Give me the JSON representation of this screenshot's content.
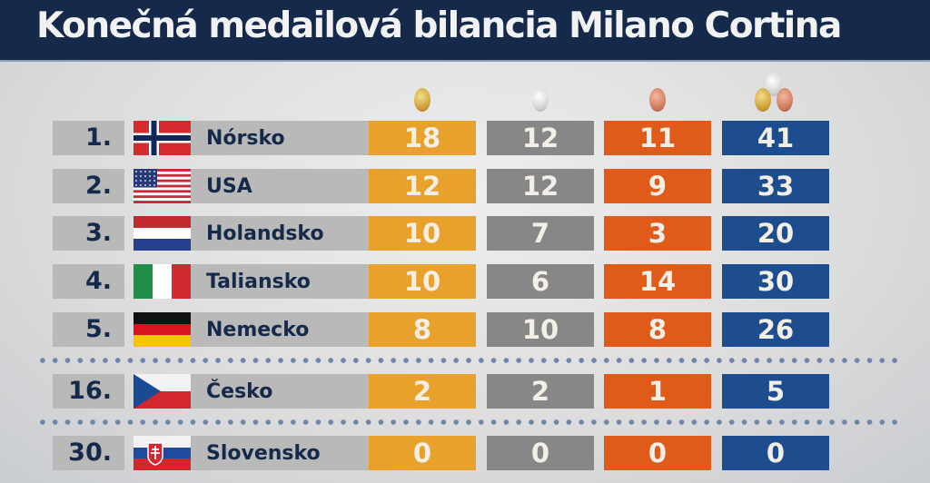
{
  "title": "Konečná medailová bilancia Milano Cortina",
  "colors": {
    "gold": "#e8a22c",
    "silver": "#878787",
    "bronze": "#e05a1a",
    "total": "#1d4d8f",
    "header": "#152a4a"
  },
  "columns": [
    "gold-medal-icon",
    "silver-medal-icon",
    "bronze-medal-icon",
    "all-medals-icon"
  ],
  "rows": [
    {
      "rank": "1.",
      "flag": "norway",
      "country": "Nórsko",
      "gold": "18",
      "silver": "12",
      "bronze": "11",
      "total": "41"
    },
    {
      "rank": "2.",
      "flag": "usa",
      "country": "USA",
      "gold": "12",
      "silver": "12",
      "bronze": "9",
      "total": "33"
    },
    {
      "rank": "3.",
      "flag": "netherlands",
      "country": "Holandsko",
      "gold": "10",
      "silver": "7",
      "bronze": "3",
      "total": "20"
    },
    {
      "rank": "4.",
      "flag": "italy",
      "country": "Taliansko",
      "gold": "10",
      "silver": "6",
      "bronze": "14",
      "total": "30"
    },
    {
      "rank": "5.",
      "flag": "germany",
      "country": "Nemecko",
      "gold": "8",
      "silver": "10",
      "bronze": "8",
      "total": "26"
    },
    {
      "rank": "16.",
      "flag": "czechia",
      "country": "Česko",
      "gold": "2",
      "silver": "2",
      "bronze": "1",
      "total": "5"
    },
    {
      "rank": "30.",
      "flag": "slovakia",
      "country": "Slovensko",
      "gold": "0",
      "silver": "0",
      "bronze": "0",
      "total": "0"
    }
  ]
}
